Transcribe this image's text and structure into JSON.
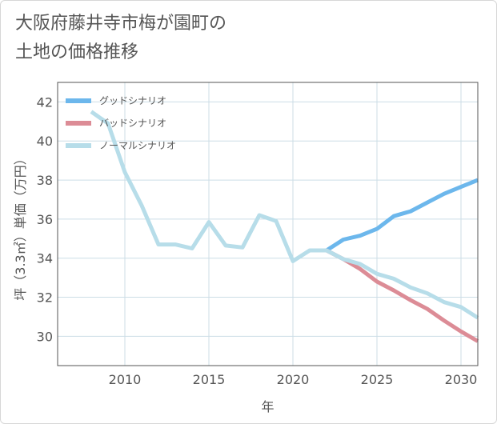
{
  "title_line1": "大阪府藤井寺市梅が園町の",
  "title_line2": "土地の価格推移",
  "chart_data": {
    "type": "line",
    "xlabel": "年",
    "ylabel": "坪（3.3㎡）単価（万円）",
    "xlim": [
      2006,
      2031
    ],
    "ylim": [
      28.5,
      43
    ],
    "xticks": [
      2010,
      2015,
      2020,
      2025,
      2030
    ],
    "yticks": [
      30,
      32,
      34,
      36,
      38,
      40,
      42
    ],
    "grid": true,
    "legend_position": "top-left",
    "series": [
      {
        "name": "グッドシナリオ",
        "color": "#6cb7ec",
        "x": [
          2022,
          2023,
          2024,
          2025,
          2026,
          2027,
          2028,
          2029,
          2030,
          2031
        ],
        "y": [
          34.4,
          34.95,
          35.15,
          35.5,
          36.15,
          36.4,
          36.85,
          37.3,
          37.65,
          38.0
        ]
      },
      {
        "name": "バッドシナリオ",
        "color": "#dc8c96",
        "x": [
          2022,
          2023,
          2024,
          2025,
          2026,
          2027,
          2028,
          2029,
          2030,
          2031
        ],
        "y": [
          34.4,
          33.95,
          33.45,
          32.8,
          32.35,
          31.85,
          31.4,
          30.8,
          30.25,
          29.75
        ]
      },
      {
        "name": "ノーマルシナリオ",
        "color": "#b7dde9",
        "x": [
          2008,
          2009,
          2010,
          2011,
          2012,
          2013,
          2014,
          2015,
          2016,
          2017,
          2018,
          2019,
          2020,
          2021,
          2022,
          2023,
          2024,
          2025,
          2026,
          2027,
          2028,
          2029,
          2030,
          2031
        ],
        "y": [
          41.5,
          40.9,
          38.4,
          36.7,
          34.7,
          34.7,
          34.5,
          35.85,
          34.65,
          34.55,
          36.2,
          35.9,
          33.85,
          34.4,
          34.4,
          33.95,
          33.7,
          33.2,
          32.95,
          32.5,
          32.2,
          31.75,
          31.5,
          30.95
        ]
      }
    ]
  }
}
